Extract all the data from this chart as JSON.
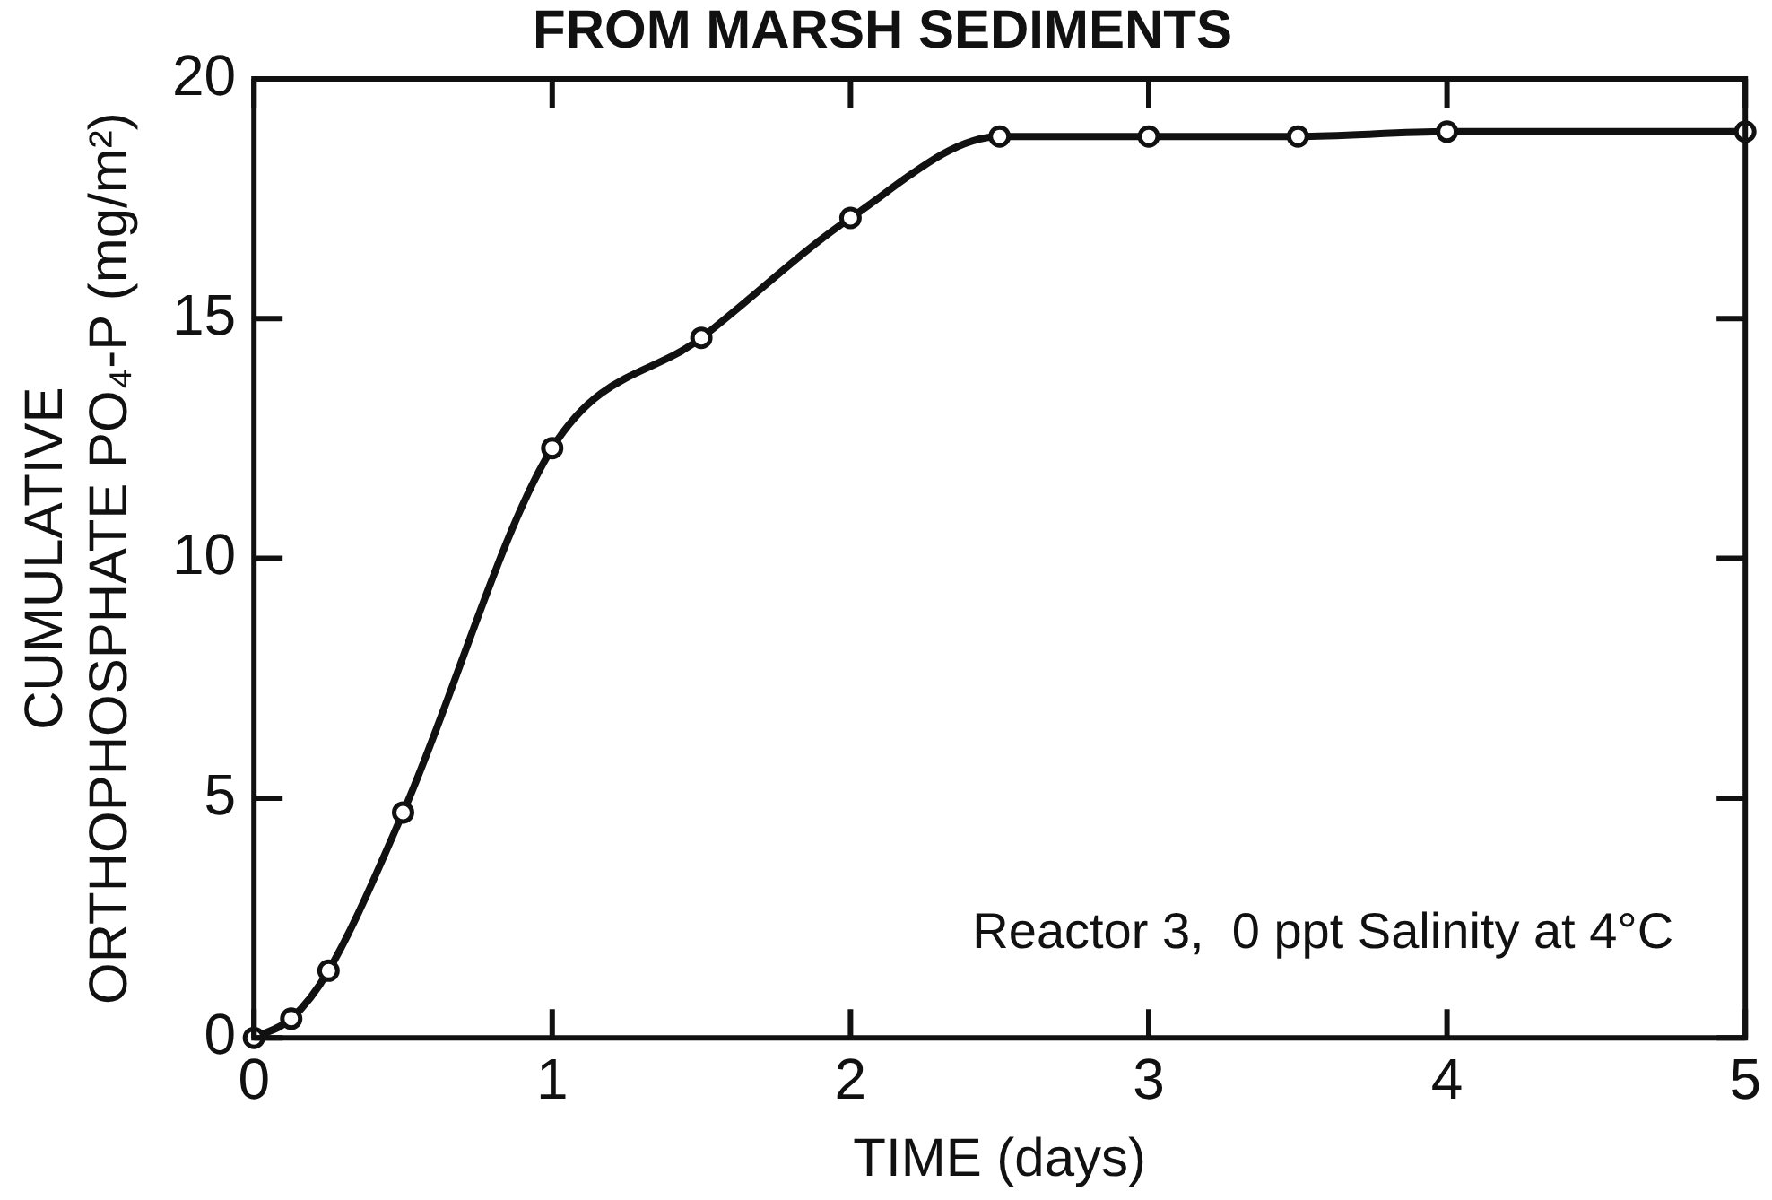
{
  "chart_data": {
    "type": "line",
    "title": "FROM MARSH SEDIMENTS",
    "xlabel": "TIME (days)",
    "ylabel": "CUMULATIVE\nORTHOPHOSPHATE PO₄-P (mg/m²)",
    "x": [
      0,
      0.125,
      0.25,
      0.5,
      1,
      1.5,
      2,
      2.5,
      3,
      3.5,
      4,
      5
    ],
    "series": [
      {
        "color": "#111111",
        "values": [
          0,
          0.4,
          1.4,
          4.7,
          12.3,
          14.6,
          17.1,
          18.8,
          18.8,
          18.8,
          18.9,
          18.9
        ]
      }
    ],
    "xlim": [
      0,
      5
    ],
    "xticks": [
      0,
      1,
      2,
      3,
      4,
      5
    ],
    "ylim": [
      0,
      20
    ],
    "yticks": [
      0,
      5,
      10,
      15,
      20
    ],
    "grid": false,
    "legend": false,
    "marker": "circle",
    "line_style": "solid",
    "annotations": [
      "Reactor 3,  0 ppt Salinity at 4°C"
    ]
  }
}
